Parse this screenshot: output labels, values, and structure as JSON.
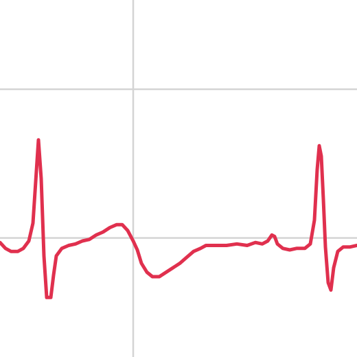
{
  "chart_data": {
    "type": "line",
    "title": "",
    "xlabel": "",
    "ylabel": "",
    "xlim": [
      0,
      520
    ],
    "ylim": [
      -0.8,
      1.6
    ],
    "grid": true,
    "grid_x": [
      194
    ],
    "grid_y": [
      0,
      1
    ],
    "series": [
      {
        "name": "",
        "color": "#e0304e",
        "points": [
          [
            0,
            -0.03
          ],
          [
            8,
            -0.07
          ],
          [
            16,
            -0.09
          ],
          [
            26,
            -0.09
          ],
          [
            34,
            -0.07
          ],
          [
            42,
            -0.02
          ],
          [
            48,
            0.1
          ],
          [
            52,
            0.38
          ],
          [
            56,
            0.66
          ],
          [
            60,
            0.4
          ],
          [
            64,
            -0.12
          ],
          [
            68,
            -0.4
          ],
          [
            74,
            -0.4
          ],
          [
            78,
            -0.25
          ],
          [
            82,
            -0.12
          ],
          [
            90,
            -0.07
          ],
          [
            100,
            -0.05
          ],
          [
            110,
            -0.04
          ],
          [
            120,
            -0.02
          ],
          [
            130,
            -0.01
          ],
          [
            140,
            0.02
          ],
          [
            150,
            0.04
          ],
          [
            160,
            0.07
          ],
          [
            170,
            0.09
          ],
          [
            178,
            0.09
          ],
          [
            186,
            0.05
          ],
          [
            194,
            -0.02
          ],
          [
            200,
            -0.08
          ],
          [
            206,
            -0.17
          ],
          [
            214,
            -0.23
          ],
          [
            222,
            -0.26
          ],
          [
            232,
            -0.26
          ],
          [
            242,
            -0.23
          ],
          [
            252,
            -0.2
          ],
          [
            262,
            -0.17
          ],
          [
            272,
            -0.13
          ],
          [
            282,
            -0.09
          ],
          [
            292,
            -0.07
          ],
          [
            300,
            -0.05
          ],
          [
            315,
            -0.05
          ],
          [
            330,
            -0.05
          ],
          [
            345,
            -0.04
          ],
          [
            360,
            -0.05
          ],
          [
            372,
            -0.03
          ],
          [
            382,
            -0.04
          ],
          [
            390,
            -0.02
          ],
          [
            396,
            0.02
          ],
          [
            400,
            0.01
          ],
          [
            404,
            -0.04
          ],
          [
            412,
            -0.07
          ],
          [
            422,
            -0.08
          ],
          [
            432,
            -0.07
          ],
          [
            444,
            -0.07
          ],
          [
            452,
            -0.04
          ],
          [
            458,
            0.12
          ],
          [
            462,
            0.46
          ],
          [
            465,
            0.62
          ],
          [
            468,
            0.55
          ],
          [
            471,
            0.26
          ],
          [
            474,
            -0.06
          ],
          [
            478,
            -0.3
          ],
          [
            482,
            -0.35
          ],
          [
            486,
            -0.2
          ],
          [
            492,
            -0.09
          ],
          [
            500,
            -0.06
          ],
          [
            510,
            -0.06
          ],
          [
            520,
            -0.05
          ]
        ]
      }
    ]
  }
}
